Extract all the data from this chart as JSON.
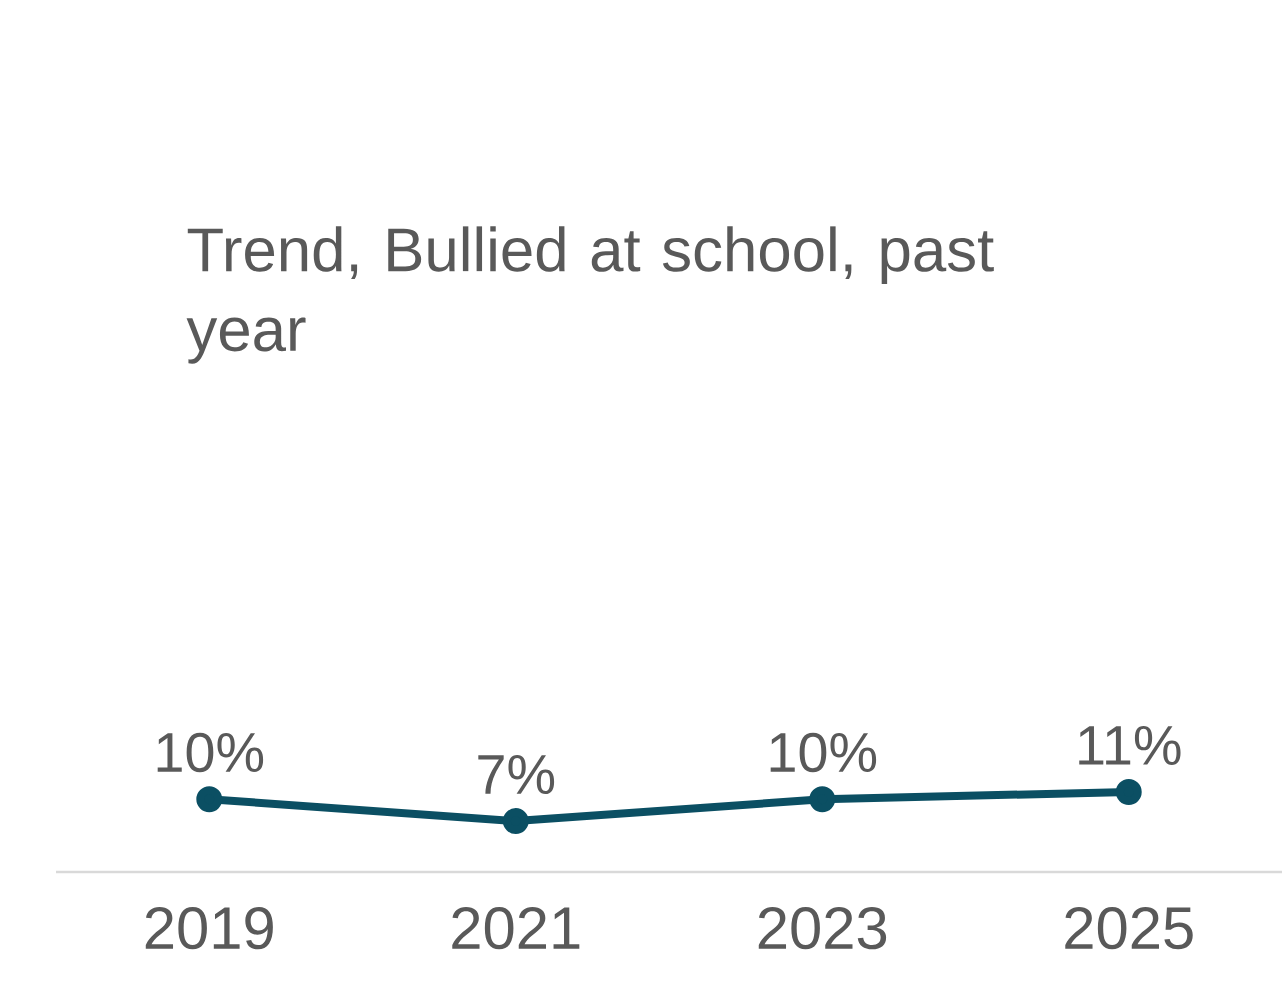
{
  "chart_data": {
    "type": "line",
    "title": "Trend, Bullied at school, past year",
    "categories": [
      "2019",
      "2021",
      "2023",
      "2025"
    ],
    "values": [
      10,
      7,
      10,
      11
    ],
    "value_labels": [
      "10%",
      "7%",
      "10%",
      "11%"
    ],
    "color": "#0b4f63",
    "marker": "circle",
    "line_style": "solid"
  }
}
